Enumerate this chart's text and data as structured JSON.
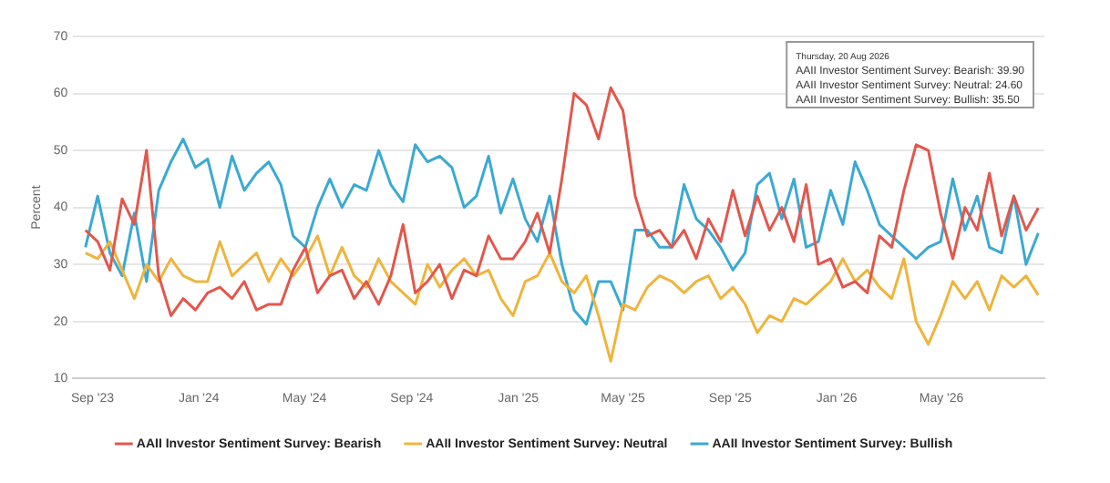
{
  "chart_data": {
    "type": "line",
    "ylabel": "Percent",
    "x": [
      "2023-08-24",
      "2023-09-07",
      "2023-09-21",
      "2023-10-05",
      "2023-10-19",
      "2023-11-02",
      "2023-11-16",
      "2023-11-30",
      "2023-12-14",
      "2023-12-28",
      "2024-01-11",
      "2024-01-25",
      "2024-02-08",
      "2024-02-22",
      "2024-03-07",
      "2024-03-21",
      "2024-04-04",
      "2024-04-18",
      "2024-05-02",
      "2024-05-16",
      "2024-05-30",
      "2024-06-13",
      "2024-06-27",
      "2024-07-11",
      "2024-07-25",
      "2024-08-08",
      "2024-08-22",
      "2024-09-05",
      "2024-09-19",
      "2024-10-03",
      "2024-10-17",
      "2024-10-31",
      "2024-11-14",
      "2024-11-28",
      "2024-12-12",
      "2024-12-26",
      "2025-01-09",
      "2025-01-23",
      "2025-02-06",
      "2025-02-20",
      "2025-03-06",
      "2025-03-20",
      "2025-04-03",
      "2025-04-17",
      "2025-05-01",
      "2025-05-15",
      "2025-05-29",
      "2025-06-12",
      "2025-06-26",
      "2025-07-10",
      "2025-07-24",
      "2025-08-07",
      "2025-08-21",
      "2025-09-04",
      "2025-09-18",
      "2025-10-02",
      "2025-10-16",
      "2025-10-30",
      "2025-11-13",
      "2025-11-27",
      "2025-12-11",
      "2025-12-25",
      "2026-01-08",
      "2026-01-22",
      "2026-02-05",
      "2026-02-19",
      "2026-03-05",
      "2026-03-19",
      "2026-04-02",
      "2026-04-16",
      "2026-04-30",
      "2026-05-14",
      "2026-05-28",
      "2026-06-11",
      "2026-06-25",
      "2026-07-09",
      "2026-07-23",
      "2026-08-06",
      "2026-08-20"
    ],
    "series": [
      {
        "name": "AAII Investor Sentiment Survey: Bearish",
        "color": "#e2574c",
        "values": [
          36,
          34,
          29,
          41.5,
          37,
          50,
          28,
          21,
          24,
          22,
          25,
          26,
          24,
          27,
          22,
          23,
          23,
          29,
          33,
          25,
          28,
          29,
          24,
          27,
          23,
          28,
          37,
          25,
          27,
          30,
          24,
          29,
          28,
          35,
          31,
          31,
          34,
          39,
          32,
          45,
          60,
          58,
          52,
          61,
          57,
          42,
          35,
          36,
          33,
          36,
          31,
          38,
          34,
          43,
          35,
          42,
          36,
          40,
          34,
          44,
          30,
          31,
          26,
          27,
          25,
          35,
          33,
          43,
          51,
          50,
          39,
          31,
          40,
          36,
          46,
          35,
          42,
          36,
          39.9
        ]
      },
      {
        "name": "AAII Investor Sentiment Survey: Neutral",
        "color": "#f0b43c",
        "values": [
          32,
          31,
          34,
          29,
          24,
          30,
          27,
          31,
          28,
          27,
          27,
          34,
          28,
          30,
          32,
          27,
          31,
          28,
          31,
          35,
          28,
          33,
          28,
          26,
          31,
          27,
          25,
          23,
          30,
          26,
          29,
          31,
          28,
          29,
          24,
          21,
          27,
          28,
          32,
          27,
          25,
          28,
          21,
          13,
          23,
          22,
          26,
          28,
          27,
          25,
          27,
          28,
          24,
          26,
          23,
          18,
          21,
          20,
          24,
          23,
          25,
          27,
          31,
          27,
          29,
          26,
          24,
          31,
          20,
          16,
          21,
          27,
          24,
          27,
          22,
          28,
          26,
          28,
          24.6
        ]
      },
      {
        "name": "AAII Investor Sentiment Survey: Bullish",
        "color": "#3aa9d4",
        "values": [
          33,
          42,
          32,
          28,
          39,
          27,
          43,
          48,
          52,
          47,
          48.5,
          40,
          49,
          43,
          46,
          48,
          44,
          35,
          33,
          40,
          45,
          40,
          44,
          43,
          50,
          44,
          41,
          51,
          48,
          49,
          47,
          40,
          42,
          49,
          39,
          45,
          38,
          34,
          42,
          30,
          22,
          19.5,
          27,
          27,
          22,
          36,
          36,
          33,
          33,
          44,
          38,
          36,
          33,
          29,
          32,
          44,
          46,
          38,
          45,
          33,
          34,
          43,
          37,
          48,
          43,
          37,
          35,
          33,
          31,
          33,
          34,
          45,
          36,
          42,
          33,
          32,
          42,
          30,
          35.5
        ]
      }
    ],
    "xlim": [
      "2023-08-10",
      "2026-08-27"
    ],
    "xticks": [
      {
        "value": "2023-09-01",
        "label": "Sep '23"
      },
      {
        "value": "2024-01-01",
        "label": "Jan '24"
      },
      {
        "value": "2024-05-01",
        "label": "May '24"
      },
      {
        "value": "2024-09-01",
        "label": "Sep '24"
      },
      {
        "value": "2025-01-01",
        "label": "Jan '25"
      },
      {
        "value": "2025-05-01",
        "label": "May '25"
      },
      {
        "value": "2025-09-01",
        "label": "Sep '25"
      },
      {
        "value": "2026-01-01",
        "label": "Jan '26"
      },
      {
        "value": "2026-05-01",
        "label": "May '26"
      }
    ],
    "ylim": [
      10,
      70
    ],
    "yticks": [
      10,
      20,
      30,
      40,
      50,
      60,
      70
    ],
    "grid": "y",
    "legend": "bottom",
    "marker": "none",
    "line_style": "solid",
    "annotations": [
      "Thursday, 20 Aug 2026",
      "AAII Investor Sentiment Survey: Bearish: 39.90",
      "AAII Investor Sentiment Survey: Neutral: 24.60",
      "AAII Investor Sentiment Survey: Bullish: 35.50"
    ]
  }
}
